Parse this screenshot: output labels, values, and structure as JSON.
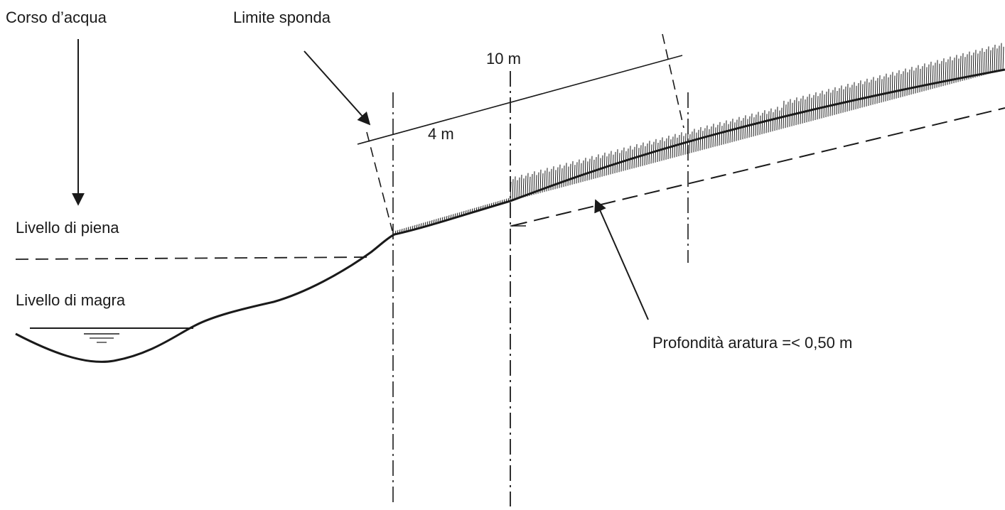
{
  "labels": {
    "corso_acqua": "Corso d’acqua",
    "limite_sponda": "Limite sponda",
    "dist_10m": "10 m",
    "dist_4m": "4 m",
    "livello_piena": "Livello di piena",
    "livello_magra": "Livello di magra",
    "profondita_aratura": "Profondità aratura =< 0,50 m"
  },
  "colors": {
    "ink": "#1a1a1a",
    "background": "#ffffff"
  }
}
